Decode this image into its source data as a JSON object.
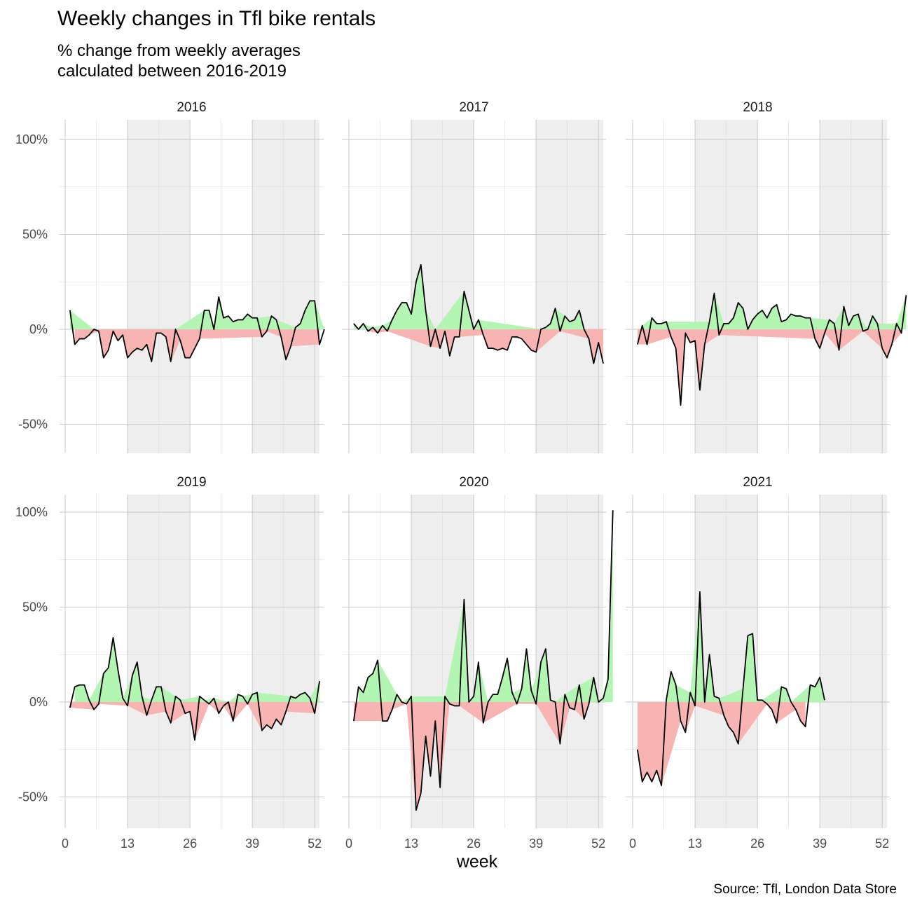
{
  "title": "Weekly changes in Tfl bike rentals",
  "subtitle": "% change from weekly averages\ncalculated between 2016-2019",
  "caption": "Source: Tfl, London Data Store",
  "chart_data": {
    "type": "line",
    "xlabel": "week",
    "ylabel": "",
    "xlim": [
      0,
      53
    ],
    "ylim": [
      -65,
      110
    ],
    "x_ticks": [
      0,
      13,
      26,
      39,
      52
    ],
    "y_ticks": [
      -50,
      0,
      50,
      100
    ],
    "y_tick_labels": [
      "-50%",
      "0%",
      "50%",
      "100%"
    ],
    "shaded_week_ranges": [
      [
        13,
        26
      ],
      [
        39,
        53
      ]
    ],
    "colors": {
      "positive_fill": "#b3f5b3",
      "negative_fill": "#f8b3b3",
      "line": "#000000",
      "shade": "#eeeeee",
      "grid": "#c8c8c8"
    },
    "panels": [
      {
        "year": "2016",
        "values": [
          10,
          -8,
          -5,
          -5,
          -3,
          0,
          -1,
          -15,
          -11,
          -1,
          -6,
          -3,
          -15,
          -12,
          -10,
          -11,
          -8,
          -17,
          -2,
          -2,
          -4,
          -17,
          0,
          -6,
          -15,
          -15,
          -10,
          -5,
          10,
          10,
          0,
          17,
          6,
          7,
          4,
          5,
          5,
          8,
          6,
          6,
          -4,
          -1,
          7,
          5,
          -4,
          -16,
          -9,
          1,
          3,
          10,
          15,
          15,
          -8,
          0
        ]
      },
      {
        "year": "2017",
        "values": [
          3,
          0,
          3,
          -1,
          1,
          -2,
          2,
          -1,
          5,
          10,
          14,
          14,
          8,
          25,
          34,
          10,
          -9,
          0,
          -10,
          -1,
          -14,
          -4,
          -4,
          20,
          10,
          0,
          5,
          -3,
          -10,
          -10,
          -11,
          -10,
          -11,
          -4,
          -4,
          -5,
          -8,
          -11,
          -12,
          0,
          1,
          3,
          11,
          -1,
          7,
          4,
          5,
          10,
          0,
          -5,
          -18,
          -7,
          -18
        ]
      },
      {
        "year": "2018",
        "values": [
          -8,
          2,
          -8,
          6,
          3,
          3,
          4,
          -4,
          -10,
          -40,
          -2,
          -7,
          -6,
          -32,
          -8,
          4,
          19,
          -3,
          3,
          3,
          6,
          14,
          11,
          0,
          5,
          8,
          10,
          6,
          11,
          13,
          4,
          5,
          8,
          7,
          7,
          6,
          6,
          -5,
          -10,
          -2,
          5,
          3,
          -11,
          12,
          2,
          7,
          8,
          -1,
          0,
          7,
          3,
          -10,
          -15,
          -8,
          3,
          -2,
          18
        ]
      },
      {
        "year": "2019",
        "values": [
          -3,
          8,
          9,
          9,
          1,
          -4,
          -1,
          15,
          18,
          34,
          17,
          2,
          -2,
          14,
          21,
          3,
          -7,
          1,
          8,
          8,
          -5,
          -11,
          3,
          1,
          -6,
          -5,
          -20,
          3,
          1,
          -1,
          2,
          -6,
          -2,
          0,
          -10,
          4,
          3,
          -1,
          4,
          5,
          -15,
          -12,
          -14,
          -9,
          -12,
          -5,
          3,
          2,
          4,
          5,
          2,
          -6,
          11
        ]
      },
      {
        "year": "2020",
        "values": [
          -10,
          8,
          5,
          13,
          15,
          22,
          -10,
          -10,
          -4,
          4,
          0,
          -1,
          3,
          -57,
          -48,
          -18,
          -39,
          -10,
          -45,
          3,
          -1,
          -2,
          -2,
          54,
          0,
          3,
          21,
          -11,
          0,
          4,
          4,
          13,
          23,
          5,
          -1,
          7,
          28,
          6,
          -1,
          21,
          28,
          1,
          0,
          -22,
          4,
          -3,
          -4,
          9,
          -9,
          -1,
          13,
          0,
          2,
          12,
          101
        ]
      },
      {
        "year": "2021",
        "values": [
          -25,
          -42,
          -37,
          -42,
          -36,
          -44,
          1,
          16,
          9,
          -10,
          -16,
          5,
          -2,
          58,
          0,
          25,
          3,
          2,
          -7,
          -13,
          -16,
          -22,
          7,
          35,
          36,
          1,
          1,
          -1,
          -4,
          -11,
          8,
          7,
          0,
          -4,
          -10,
          -13,
          9,
          8,
          13,
          1
        ]
      }
    ]
  }
}
